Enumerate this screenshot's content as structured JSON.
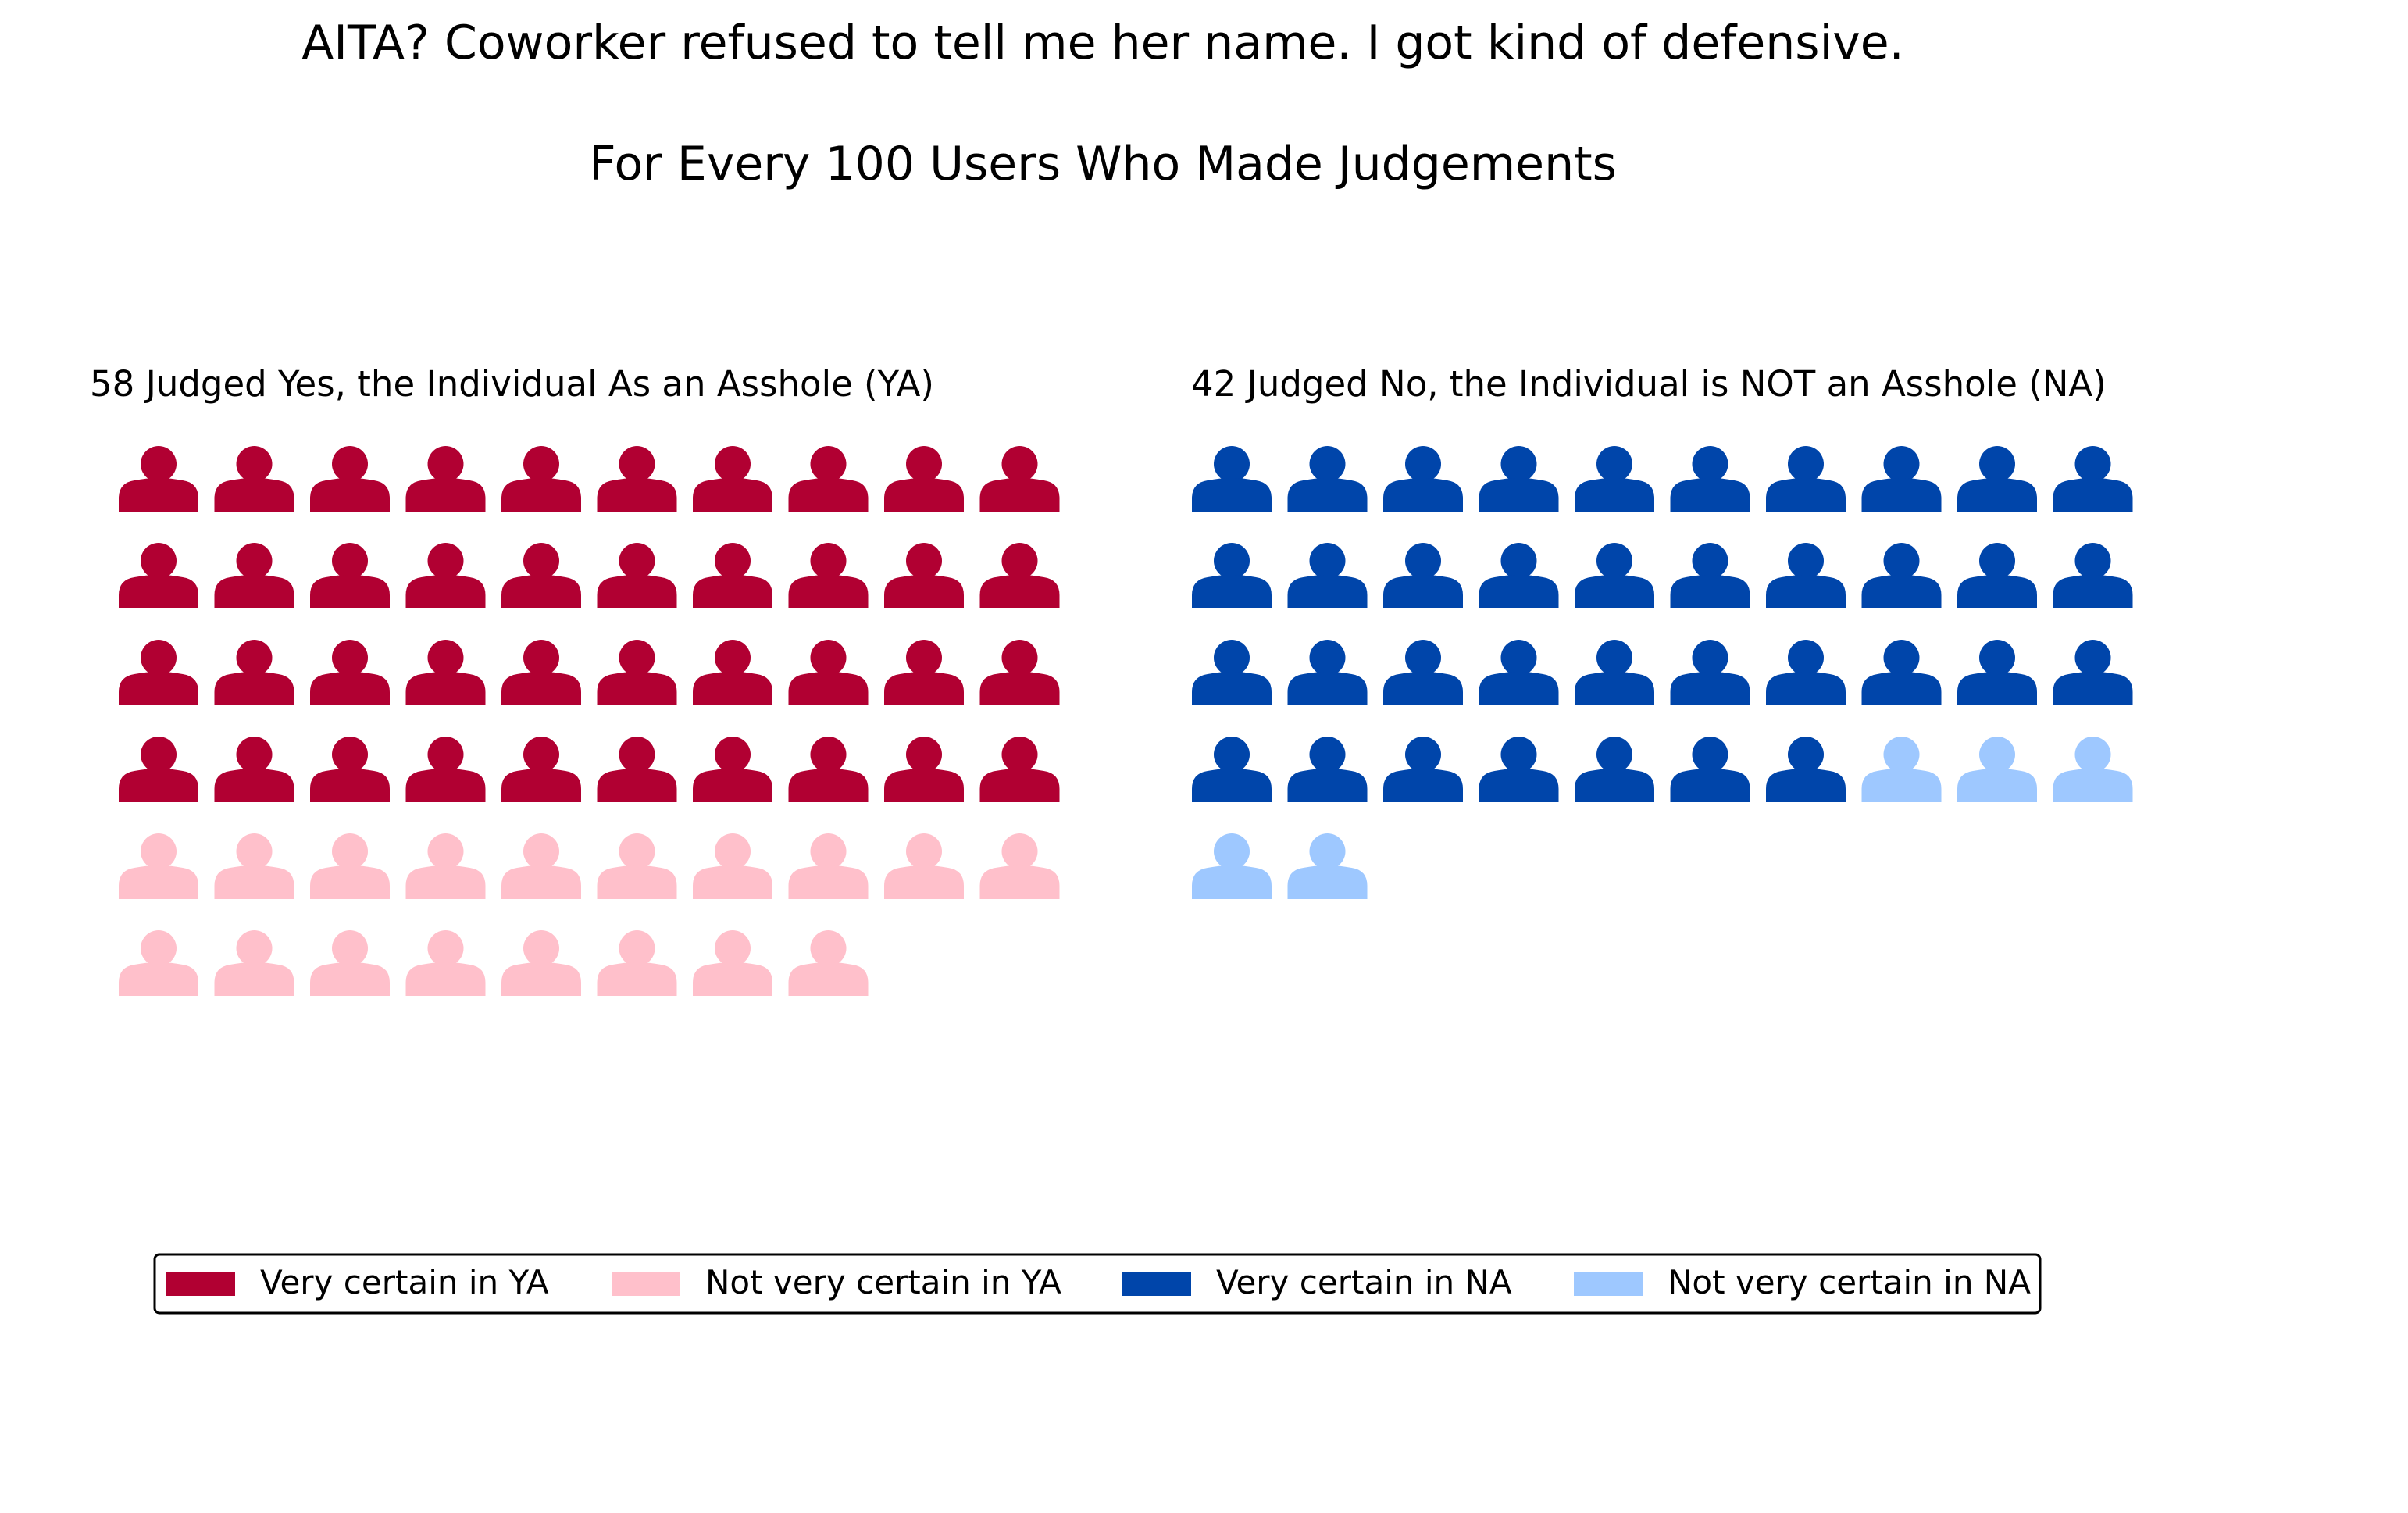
{
  "title": "AITA? Coworker refused to tell me her name. I got kind of defensive.",
  "subtitle": "For Every 100 Users Who Made Judgements",
  "chart_data": {
    "type": "pictogram",
    "icon": "person-icon",
    "icons_per_row": 10,
    "groups": [
      {
        "label": "58 Judged Yes, the Individual As an Asshole (YA)",
        "segments": [
          {
            "name": "Very certain in YA",
            "count": 40,
            "color": "#b10032"
          },
          {
            "name": "Not very certain in YA",
            "count": 18,
            "color": "#ffc0cb"
          }
        ]
      },
      {
        "label": "42 Judged No, the Individual is NOT an Asshole (NA)",
        "segments": [
          {
            "name": "Very certain in NA",
            "count": 37,
            "color": "#0045aa"
          },
          {
            "name": "Not very certain in NA",
            "count": 5,
            "color": "#9ec8ff"
          }
        ]
      }
    ],
    "legend": {
      "position": "bottom",
      "entries": [
        {
          "label": "Very certain in YA",
          "color": "#b10032"
        },
        {
          "label": "Not very certain in YA",
          "color": "#ffc0cb"
        },
        {
          "label": "Very certain in NA",
          "color": "#0045aa"
        },
        {
          "label": "Not very certain in NA",
          "color": "#9ec8ff"
        }
      ]
    }
  }
}
